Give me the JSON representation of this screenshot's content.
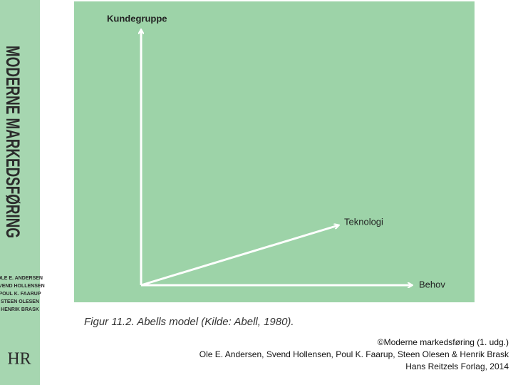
{
  "cover": {
    "title": "MODERNE MARKEDSFØRING",
    "authors": [
      "OLE E. ANDERSEN",
      "SVEND HOLLENSEN",
      "POUL K. FAARUP",
      "STEEN OLESEN",
      "HENRIK BRASK"
    ],
    "logo": "HR"
  },
  "diagram": {
    "axis_vertical": "Kundegruppe",
    "axis_diagonal": "Teknologi",
    "axis_horizontal": "Behov",
    "caption": "Figur 11.2. Abells model (Kilde: Abell, 1980)."
  },
  "footer": {
    "lines": [
      "©Moderne markedsføring (1. udg.)",
      "Ole E. Andersen, Svend Hollensen, Poul K. Faarup, Steen Olesen & Henrik Brask",
      "Hans Reitzels Forlag, 2014"
    ]
  }
}
